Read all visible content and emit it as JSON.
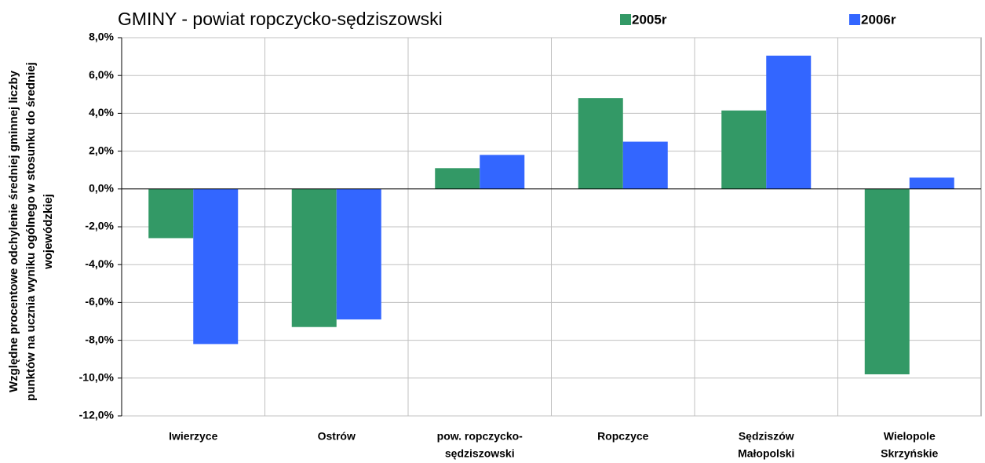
{
  "chart_data": {
    "type": "bar",
    "title": "GMINY -  powiat ropczycko-sędziszowski",
    "ylabel": [
      "Względne procentowe odchylenie średniej gminnej liczby",
      "punktów na ucznia wyniku ogólnego w stosunku do średniej",
      "wojewódzkiej"
    ],
    "categories": [
      [
        "Iwierzyce"
      ],
      [
        "Ostrów"
      ],
      [
        "pow. ropczycko-",
        "sędziszowski"
      ],
      [
        "Ropczyce"
      ],
      [
        "Sędziszów",
        "Małopolski"
      ],
      [
        "Wielopole",
        "Skrzyńskie"
      ]
    ],
    "series": [
      {
        "name": "2005r",
        "color": "#339966",
        "values": [
          -2.6,
          -7.3,
          1.1,
          4.8,
          4.15,
          -9.8
        ]
      },
      {
        "name": "2006r",
        "color": "#3366ff",
        "values": [
          -8.2,
          -6.9,
          1.8,
          2.5,
          7.05,
          0.6
        ]
      }
    ],
    "ylim": [
      -12,
      8
    ],
    "yticks": [
      {
        "value": -12,
        "label": "-12,0%"
      },
      {
        "value": -10,
        "label": "-10,0%"
      },
      {
        "value": -8,
        "label": "-8,0%"
      },
      {
        "value": -6,
        "label": "-6,0%"
      },
      {
        "value": -4,
        "label": "-4,0%"
      },
      {
        "value": -2,
        "label": "-2,0%"
      },
      {
        "value": 0,
        "label": "0,0%"
      },
      {
        "value": 2,
        "label": "2,0%"
      },
      {
        "value": 4,
        "label": "4,0%"
      },
      {
        "value": 6,
        "label": "6,0%"
      },
      {
        "value": 8,
        "label": "8,0%"
      }
    ],
    "grid": true,
    "legend": "top"
  }
}
